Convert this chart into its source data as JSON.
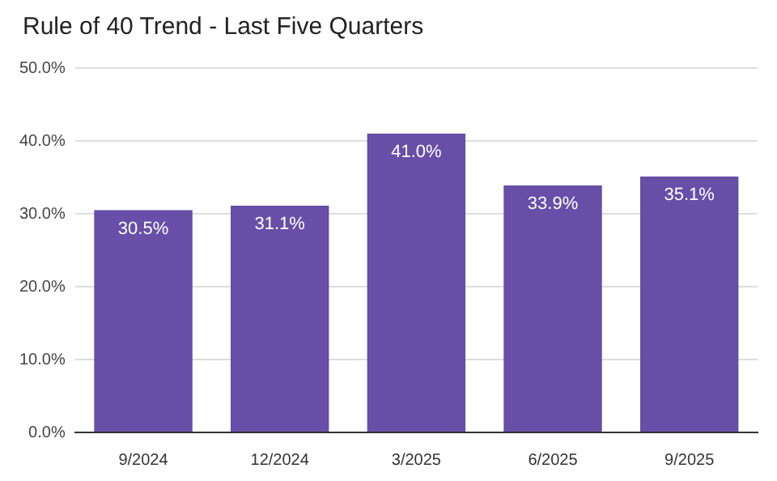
{
  "chart_data": {
    "type": "bar",
    "title": "Rule of 40 Trend - Last Five Quarters",
    "categories": [
      "9/2024",
      "12/2024",
      "3/2025",
      "6/2025",
      "9/2025"
    ],
    "values": [
      30.5,
      31.1,
      41.0,
      33.9,
      35.1
    ],
    "color": "#674ea7",
    "value_labels": [
      "30.5%",
      "31.1%",
      "41.0%",
      "33.9%",
      "35.1%"
    ],
    "ylim": [
      0,
      50
    ],
    "yticks": [
      {
        "value": 0,
        "label": "0.0%"
      },
      {
        "value": 10,
        "label": "10.0%"
      },
      {
        "value": 20,
        "label": "20.0%"
      },
      {
        "value": 30,
        "label": "30.0%"
      },
      {
        "value": 40,
        "label": "40.0%"
      },
      {
        "value": 50,
        "label": "50.0%"
      }
    ],
    "grid": "y",
    "legend": false
  }
}
